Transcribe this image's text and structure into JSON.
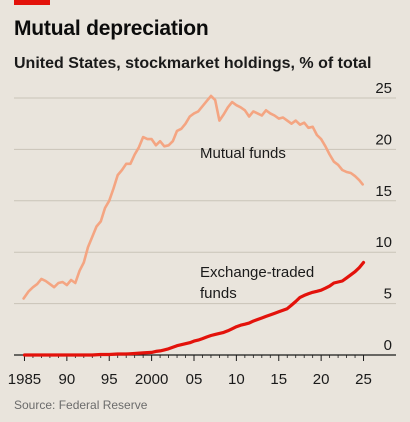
{
  "header": {
    "title": "Mutual depreciation",
    "subtitle": "United States, stockmarket holdings, % of total"
  },
  "footer": {
    "source": "Source: Federal Reserve"
  },
  "chart_data": {
    "type": "line",
    "title": "Mutual depreciation",
    "subtitle": "United States, stockmarket holdings, % of total",
    "xlabel": "",
    "ylabel": "",
    "xlim": [
      1984,
      2026
    ],
    "ylim": [
      0,
      25
    ],
    "x_ticks": [
      1985,
      1990,
      1995,
      2000,
      2005,
      2010,
      2015,
      2020,
      2025
    ],
    "x_tick_labels": [
      "1985",
      "90",
      "95",
      "2000",
      "05",
      "10",
      "15",
      "20",
      "25"
    ],
    "y_ticks": [
      0,
      5,
      10,
      15,
      20,
      25
    ],
    "y_tick_labels": [
      "0",
      "5",
      "10",
      "15",
      "20",
      "25"
    ],
    "y_axis_side": "right",
    "grid": "horizontal",
    "series": [
      {
        "name": "Mutual funds",
        "color": "#f4a582",
        "x": [
          1984.9,
          1985.5,
          1986,
          1986.5,
          1987,
          1987.5,
          1988,
          1988.5,
          1989,
          1989.5,
          1990,
          1990.5,
          1991,
          1991.5,
          1992,
          1992.5,
          1993,
          1993.5,
          1994,
          1994.5,
          1995,
          1995.5,
          1996,
          1996.5,
          1997,
          1997.5,
          1998,
          1998.5,
          1999,
          1999.5,
          2000,
          2000.5,
          2001,
          2001.5,
          2002,
          2002.5,
          2003,
          2003.5,
          2004,
          2004.5,
          2005,
          2005.5,
          2006,
          2006.5,
          2007,
          2007.5,
          2008,
          2008.5,
          2009,
          2009.5,
          2010,
          2010.5,
          2011,
          2011.5,
          2012,
          2012.5,
          2013,
          2013.5,
          2014,
          2014.5,
          2015,
          2015.5,
          2016,
          2016.5,
          2017,
          2017.5,
          2018,
          2018.5,
          2019,
          2019.5,
          2020,
          2020.5,
          2021,
          2021.5,
          2022,
          2022.5,
          2023,
          2023.5,
          2024,
          2024.5,
          2024.9
        ],
        "values": [
          5.5,
          6.2,
          6.6,
          6.9,
          7.4,
          7.2,
          6.9,
          6.6,
          7.0,
          7.1,
          6.8,
          7.3,
          7.0,
          8.2,
          9.0,
          10.5,
          11.5,
          12.5,
          13.0,
          14.3,
          15.0,
          16.2,
          17.5,
          18.0,
          18.6,
          18.6,
          19.5,
          20.2,
          21.2,
          21.0,
          21.0,
          20.4,
          20.8,
          20.3,
          20.4,
          20.8,
          21.8,
          22.0,
          22.5,
          23.2,
          23.5,
          23.7,
          24.2,
          24.7,
          25.2,
          24.8,
          22.8,
          23.4,
          24.1,
          24.6,
          24.3,
          24.1,
          23.8,
          23.2,
          23.7,
          23.5,
          23.3,
          23.8,
          23.5,
          23.3,
          23.0,
          23.1,
          22.8,
          22.5,
          22.8,
          22.4,
          22.6,
          22.1,
          22.2,
          21.4,
          21.0,
          20.3,
          19.5,
          18.8,
          18.5,
          18.0,
          17.8,
          17.7,
          17.4,
          17.0,
          16.6
        ]
      },
      {
        "name": "Exchange-traded funds",
        "color": "#e3120b",
        "x": [
          1985,
          1986,
          1987,
          1988,
          1989,
          1990,
          1991,
          1992,
          1993,
          1994,
          1995,
          1996,
          1997,
          1998,
          1999,
          2000,
          2000.5,
          2001,
          2001.5,
          2002,
          2002.5,
          2003,
          2003.5,
          2004,
          2004.5,
          2005,
          2005.5,
          2006,
          2006.5,
          2007,
          2007.5,
          2008,
          2008.5,
          2009,
          2009.5,
          2010,
          2010.5,
          2011,
          2011.5,
          2012,
          2012.5,
          2013,
          2013.5,
          2014,
          2014.5,
          2015,
          2015.5,
          2016,
          2016.5,
          2017,
          2017.5,
          2018,
          2018.5,
          2019,
          2019.5,
          2020,
          2020.5,
          2021,
          2021.5,
          2022,
          2022.5,
          2023,
          2023.5,
          2024,
          2024.5,
          2025
        ],
        "values": [
          0,
          0,
          0,
          0,
          0,
          0,
          0,
          0,
          0,
          0.05,
          0.05,
          0.1,
          0.1,
          0.15,
          0.2,
          0.25,
          0.35,
          0.4,
          0.5,
          0.6,
          0.75,
          0.9,
          1.0,
          1.1,
          1.2,
          1.35,
          1.45,
          1.6,
          1.75,
          1.9,
          2.0,
          2.1,
          2.2,
          2.35,
          2.55,
          2.75,
          2.9,
          3.0,
          3.1,
          3.3,
          3.45,
          3.6,
          3.75,
          3.9,
          4.05,
          4.2,
          4.35,
          4.5,
          4.85,
          5.2,
          5.6,
          5.8,
          5.95,
          6.1,
          6.2,
          6.3,
          6.5,
          6.7,
          7.0,
          7.1,
          7.2,
          7.5,
          7.8,
          8.1,
          8.5,
          9.0
        ]
      }
    ],
    "annotations": [
      {
        "text": "Mutual funds",
        "series": "Mutual funds"
      },
      {
        "text": "Exchange-traded",
        "series": "Exchange-traded funds"
      },
      {
        "text": "funds",
        "series": "Exchange-traded funds"
      }
    ]
  }
}
